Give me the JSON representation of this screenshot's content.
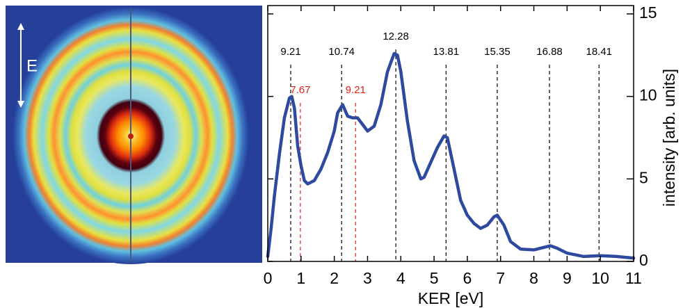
{
  "image_panel": {
    "label": "E"
  },
  "chart_data": {
    "type": "line",
    "xlabel": "KER [eV]",
    "ylabel": "intensity [arb. units]",
    "x": [
      0,
      0.1,
      0.2,
      0.35,
      0.5,
      0.65,
      0.72,
      0.8,
      0.9,
      1.0,
      1.1,
      1.2,
      1.4,
      1.6,
      1.8,
      2.0,
      2.1,
      2.25,
      2.4,
      2.55,
      2.7,
      2.85,
      3.0,
      3.2,
      3.4,
      3.6,
      3.8,
      3.9,
      4.0,
      4.2,
      4.4,
      4.6,
      4.7,
      4.9,
      5.1,
      5.3,
      5.4,
      5.6,
      5.8,
      6.0,
      6.2,
      6.4,
      6.6,
      6.8,
      6.9,
      7.1,
      7.3,
      7.6,
      8.0,
      8.3,
      8.5,
      8.7,
      9.0,
      9.5,
      10.0,
      10.5,
      11.0
    ],
    "series": [
      {
        "color": "#2e4a9e",
        "values": [
          0.3,
          2,
          4,
          6.5,
          8.7,
          9.9,
          10.0,
          9.3,
          7,
          5.8,
          4.9,
          4.7,
          4.9,
          5.6,
          6.6,
          7.9,
          9,
          9.5,
          8.8,
          8.7,
          8.7,
          8.3,
          7.9,
          8.2,
          9.5,
          11.5,
          12.6,
          12.5,
          11.5,
          8.5,
          6.1,
          5.0,
          5.1,
          6.0,
          6.9,
          7.6,
          7.5,
          5.6,
          3.7,
          2.8,
          2.3,
          2.0,
          2.2,
          2.7,
          2.8,
          2.2,
          1.2,
          0.75,
          0.7,
          0.85,
          0.95,
          0.8,
          0.5,
          0.3,
          0.35,
          0.3,
          0.2
        ]
      }
    ],
    "xlim": [
      0,
      11
    ],
    "ylim": [
      0,
      15
    ],
    "xticks": [
      0,
      1,
      2,
      3,
      4,
      5,
      6,
      7,
      8,
      9,
      10,
      11
    ],
    "yticks": [
      0,
      5,
      10,
      15
    ],
    "annotations": [
      {
        "x": 0.69,
        "label": "9.21",
        "color": "#000000"
      },
      {
        "x": 2.22,
        "label": "10.74",
        "color": "#000000"
      },
      {
        "x": 3.85,
        "label": "12.28",
        "color": "#000000"
      },
      {
        "x": 5.36,
        "label": "13.81",
        "color": "#000000"
      },
      {
        "x": 6.9,
        "label": "15.35",
        "color": "#000000"
      },
      {
        "x": 8.47,
        "label": "16.88",
        "color": "#000000"
      },
      {
        "x": 9.96,
        "label": "18.41",
        "color": "#000000"
      },
      {
        "x": 0.98,
        "label": "7.67",
        "color": "#e0201a"
      },
      {
        "x": 2.64,
        "label": "9.21",
        "color": "#e0201a"
      }
    ]
  }
}
